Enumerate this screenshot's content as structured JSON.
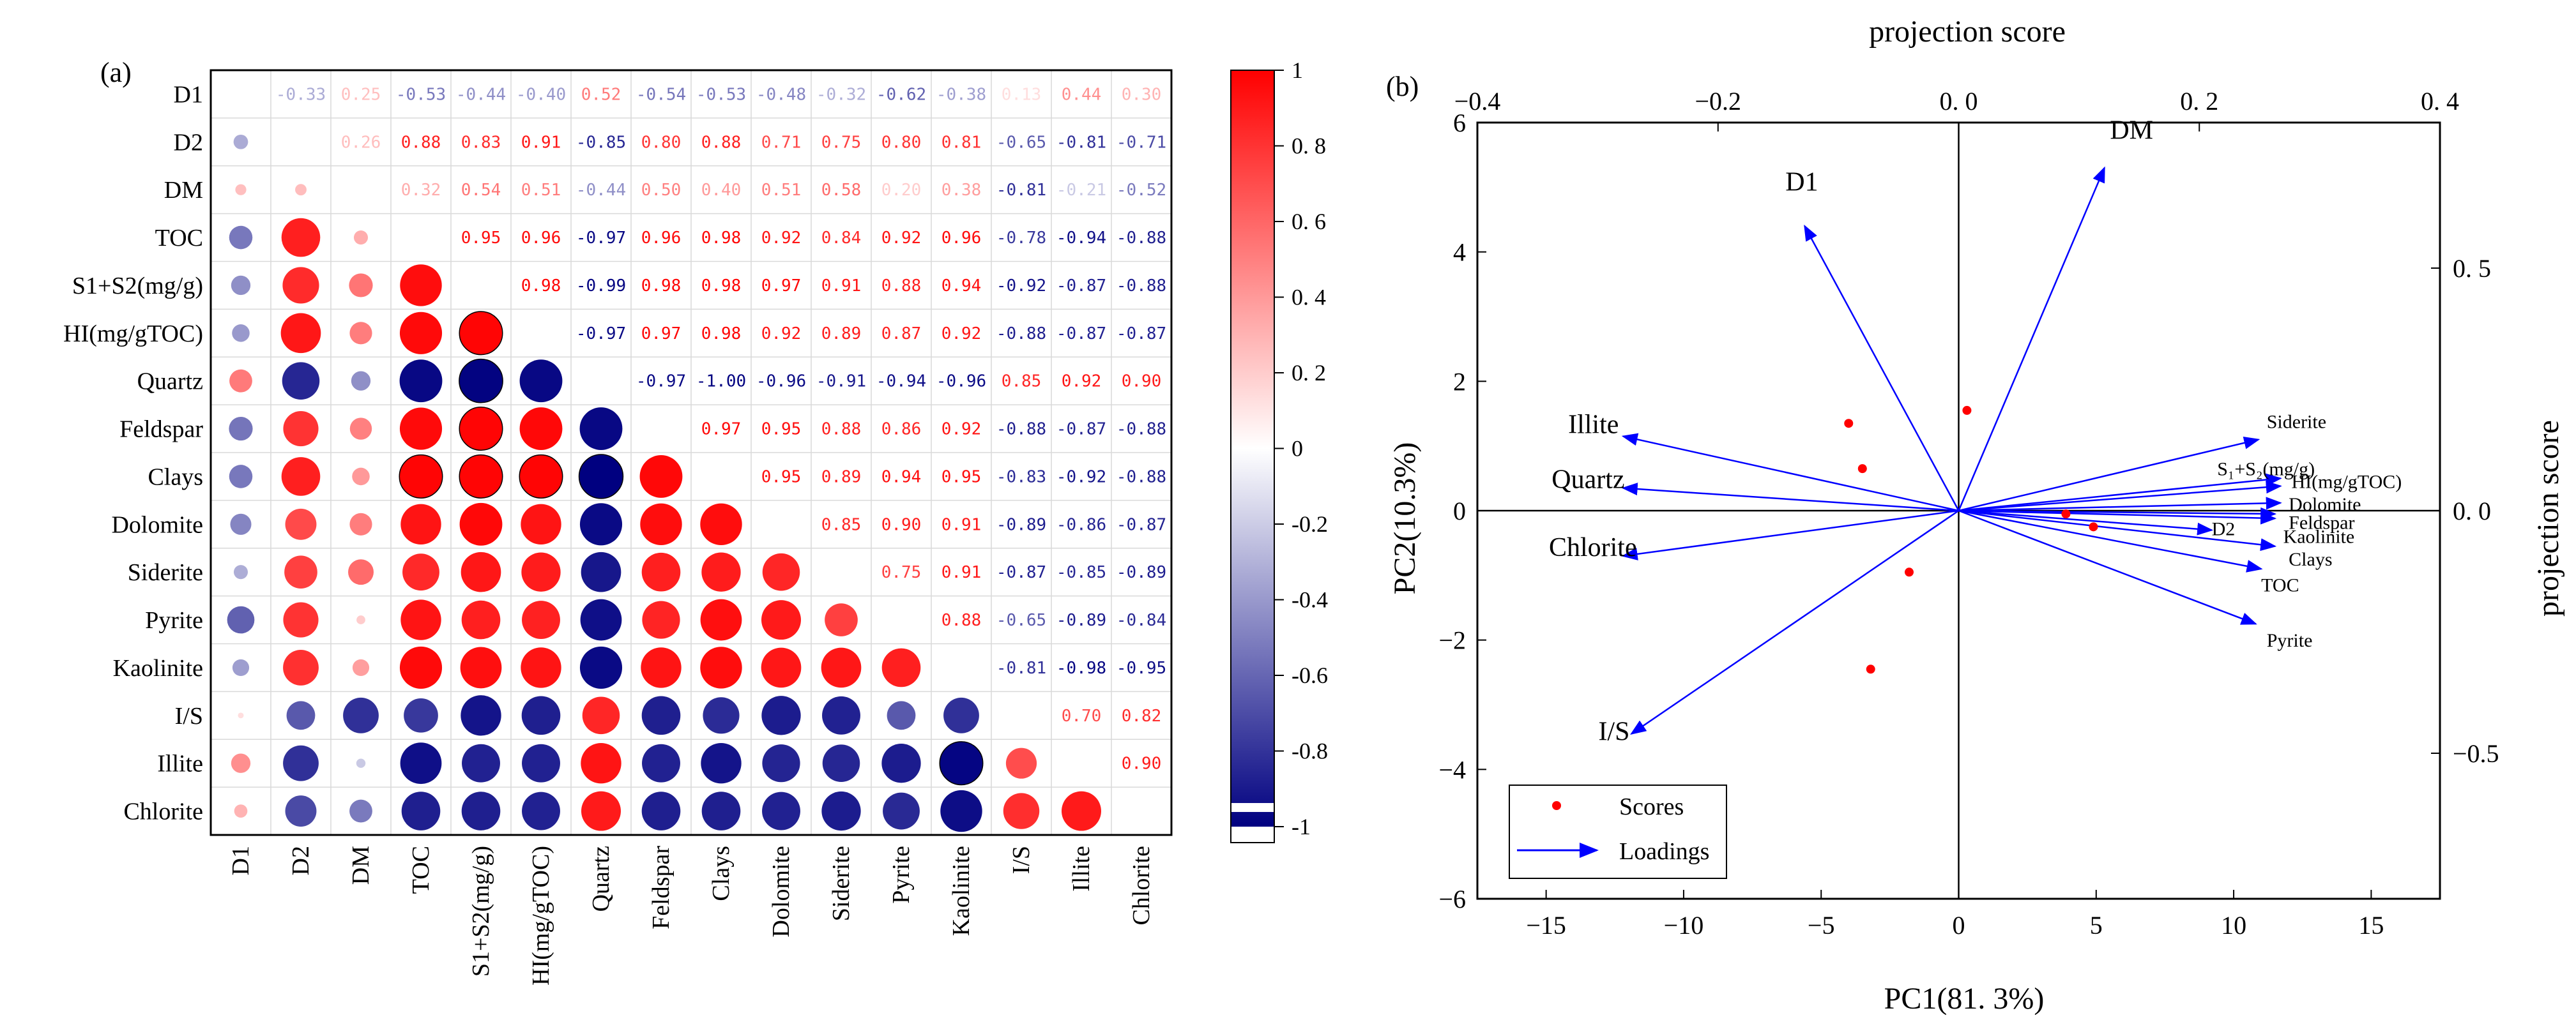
{
  "chart_data": [
    {
      "type": "heatmap",
      "panel_label": "(a)",
      "variables": [
        "D1",
        "D2",
        "DM",
        "TOC",
        "S1+S2(mg/g)",
        "HI(mg/gTOC)",
        "Quartz",
        "Feldspar",
        "Clays",
        "Dolomite",
        "Siderite",
        "Pyrite",
        "Kaolinite",
        "I/S",
        "Illite",
        "Chlorite"
      ],
      "upper_triangle_text": [
        [
          "",
          "-0.33",
          "0.25",
          "-0.53",
          "-0.44",
          "-0.40",
          "0.52",
          "-0.54",
          "-0.53",
          "-0.48",
          "-0.32",
          "-0.62",
          "-0.38",
          "0.13",
          "0.44",
          "0.30"
        ],
        [
          "",
          "",
          "0.26",
          "0.88",
          "0.83",
          "0.91",
          "-0.85",
          "0.80",
          "0.88",
          "0.71",
          "0.75",
          "0.80",
          "0.81",
          "-0.65",
          "-0.81",
          "-0.71"
        ],
        [
          "",
          "",
          "",
          "0.32",
          "0.54",
          "0.51",
          "-0.44",
          "0.50",
          "0.40",
          "0.51",
          "0.58",
          "0.20",
          "0.38",
          "-0.81",
          "-0.21",
          "-0.52"
        ],
        [
          "",
          "",
          "",
          "",
          "0.95",
          "0.96",
          "-0.97",
          "0.96",
          "0.98",
          "0.92",
          "0.84",
          "0.92",
          "0.96",
          "-0.78",
          "-0.94",
          "-0.88"
        ],
        [
          "",
          "",
          "",
          "",
          "",
          "0.98",
          "-0.99",
          "0.98",
          "0.98",
          "0.97",
          "0.91",
          "0.88",
          "0.94",
          "-0.92",
          "-0.87",
          "-0.88"
        ],
        [
          "",
          "",
          "",
          "",
          "",
          "",
          "-0.97",
          "0.97",
          "0.98",
          "0.92",
          "0.89",
          "0.87",
          "0.92",
          "-0.88",
          "-0.87",
          "-0.87"
        ],
        [
          "",
          "",
          "",
          "",
          "",
          "",
          "",
          "-0.97",
          "-1.00",
          "-0.96",
          "-0.91",
          "-0.94",
          "-0.96",
          "0.85",
          "0.92",
          "0.90"
        ],
        [
          "",
          "",
          "",
          "",
          "",
          "",
          "",
          "",
          "0.97",
          "0.95",
          "0.88",
          "0.86",
          "0.92",
          "-0.88",
          "-0.87",
          "-0.88"
        ],
        [
          "",
          "",
          "",
          "",
          "",
          "",
          "",
          "",
          "",
          "0.95",
          "0.89",
          "0.94",
          "0.95",
          "-0.83",
          "-0.92",
          "-0.88"
        ],
        [
          "",
          "",
          "",
          "",
          "",
          "",
          "",
          "",
          "",
          "",
          "0.85",
          "0.90",
          "0.91",
          "-0.89",
          "-0.86",
          "-0.87"
        ],
        [
          "",
          "",
          "",
          "",
          "",
          "",
          "",
          "",
          "",
          "",
          "",
          "0.75",
          "0.91",
          "-0.87",
          "-0.85",
          "-0.89"
        ],
        [
          "",
          "",
          "",
          "",
          "",
          "",
          "",
          "",
          "",
          "",
          "",
          "",
          "0.88",
          "-0.65",
          "-0.89",
          "-0.84"
        ],
        [
          "",
          "",
          "",
          "",
          "",
          "",
          "",
          "",
          "",
          "",
          "",
          "",
          "",
          "-0.81",
          "-0.98",
          "-0.95"
        ],
        [
          "",
          "",
          "",
          "",
          "",
          "",
          "",
          "",
          "",
          "",
          "",
          "",
          "",
          "",
          "0.70",
          "0.82"
        ],
        [
          "",
          "",
          "",
          "",
          "",
          "",
          "",
          "",
          "",
          "",
          "",
          "",
          "",
          "",
          "",
          "0.90"
        ],
        [
          "",
          "",
          "",
          "",
          "",
          "",
          "",
          "",
          "",
          "",
          "",
          "",
          "",
          "",
          "",
          ""
        ]
      ],
      "colorbar": {
        "min": -1,
        "max": 1,
        "ticks": [
          "1",
          "0. 8",
          "0. 6",
          "0. 4",
          "0. 2",
          "0",
          "-0.2",
          "-0.4",
          "-0.6",
          "-0.8",
          "-1"
        ],
        "tick_values": [
          1,
          0.8,
          0.6,
          0.4,
          0.2,
          0,
          -0.2,
          -0.4,
          -0.6,
          -0.8,
          -1
        ],
        "color_low": "#000080",
        "color_mid": "#ffffff",
        "color_high": "#ff0000"
      }
    },
    {
      "type": "biplot",
      "panel_label": "(b)",
      "xlabel": "PC1(81. 3%)",
      "ylabel": "PC2(10.3%)",
      "top_label": "projection score",
      "right_label": "projection score",
      "xlim": [
        -17.5,
        17.5
      ],
      "ylim": [
        -6,
        6
      ],
      "x_ticks": [
        -15,
        -10,
        -5,
        0,
        5,
        10,
        15
      ],
      "x_tick_labels": [
        "−15",
        "−10",
        "−5",
        "0",
        "5",
        "10",
        "15"
      ],
      "y_ticks": [
        6,
        4,
        2,
        0,
        -2,
        -4,
        -6
      ],
      "y_tick_labels": [
        "6",
        "4",
        "2",
        "0",
        "−2",
        "−4",
        "−6"
      ],
      "top_ticks": [
        -0.4,
        -0.2,
        0,
        0.2,
        0.4
      ],
      "top_tick_labels": [
        "−0.4",
        "−0.2",
        "0. 0",
        "0. 2",
        "0. 4"
      ],
      "right_ticks": [
        0.5,
        0,
        -0.5
      ],
      "right_tick_labels": [
        "0. 5",
        "0. 0",
        "−0.5"
      ],
      "projection_range": [
        -0.4,
        0.4
      ],
      "scores": [
        {
          "x": -4.0,
          "y": 1.35
        },
        {
          "x": -3.5,
          "y": 0.65
        },
        {
          "x": 0.3,
          "y": 1.55
        },
        {
          "x": 3.9,
          "y": -0.05
        },
        {
          "x": 4.9,
          "y": -0.25
        },
        {
          "x": -1.8,
          "y": -0.95
        },
        {
          "x": -3.2,
          "y": -2.45
        }
      ],
      "loadings": [
        {
          "name": "D1",
          "x": -5.6,
          "y": 4.4,
          "color": "#ff0000",
          "tx": -6.3,
          "ty": 4.95
        },
        {
          "name": "DM",
          "x": 5.3,
          "y": 5.3,
          "color": "#ff0000",
          "tx": 5.5,
          "ty": 5.75
        },
        {
          "name": "Illite",
          "x": -12.2,
          "y": 1.15,
          "color": "#000000",
          "tx": -14.2,
          "ty": 1.2
        },
        {
          "name": "Quartz",
          "x": -12.2,
          "y": 0.35,
          "color": "#000000",
          "tx": -14.8,
          "ty": 0.35
        },
        {
          "name": "Chlorite",
          "x": -12.2,
          "y": -0.7,
          "color": "#000000",
          "tx": -14.9,
          "ty": -0.7
        },
        {
          "name": "I/S",
          "x": -11.9,
          "y": -3.45,
          "color": "#000000",
          "tx": -13.1,
          "ty": -3.55
        },
        {
          "name": "Siderite",
          "x": 10.9,
          "y": 1.1,
          "color": "#000000",
          "tx": 11.2,
          "ty": 1.28
        },
        {
          "name": "S₁+S₂(mg/g)",
          "x": 11.7,
          "y": 0.5,
          "color": "#008000",
          "tx": 9.4,
          "ty": 0.55
        },
        {
          "name": "HI(mg/gTOC)",
          "x": 11.7,
          "y": 0.38,
          "color": "#008000",
          "tx": 12.1,
          "ty": 0.35
        },
        {
          "name": "Dolomite",
          "x": 11.7,
          "y": 0.12,
          "color": "#000000",
          "tx": 12.0,
          "ty": 0.0
        },
        {
          "name": "Feldspar",
          "x": 11.5,
          "y": -0.05,
          "color": "#000000",
          "tx": 12.0,
          "ty": -0.28
        },
        {
          "name": "Kaolinite",
          "x": 11.5,
          "y": -0.12,
          "color": "#000000",
          "tx": 11.8,
          "ty": -0.5
        },
        {
          "name": "D2",
          "x": 9.2,
          "y": -0.3,
          "color": "#ff0000",
          "tx": 9.2,
          "ty": -0.38
        },
        {
          "name": "Clays",
          "x": 11.5,
          "y": -0.55,
          "color": "#000000",
          "tx": 12.0,
          "ty": -0.85
        },
        {
          "name": "TOC",
          "x": 11.0,
          "y": -0.9,
          "color": "#008000",
          "tx": 11.0,
          "ty": -1.25
        },
        {
          "name": "Pyrite",
          "x": 10.8,
          "y": -1.75,
          "color": "#000000",
          "tx": 11.2,
          "ty": -2.1
        }
      ],
      "legend": {
        "scores_label": "Scores",
        "loadings_label": "Loadings",
        "position": "bottom-left"
      },
      "colors": {
        "scores": "#ff0000",
        "loadings": "#0000ff"
      }
    }
  ]
}
